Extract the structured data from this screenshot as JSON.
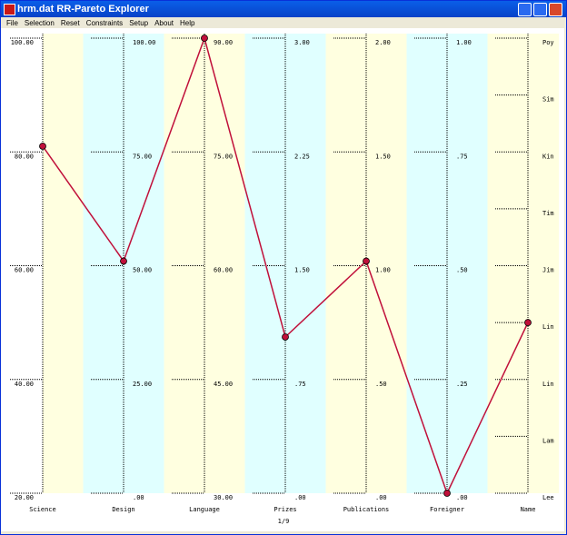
{
  "window": {
    "title": "hrm.dat RR-Pareto Explorer"
  },
  "menu": [
    "File",
    "Selection",
    "Reset",
    "Constraints",
    "Setup",
    "About",
    "Help"
  ],
  "chart_data": {
    "type": "parallel",
    "color": "#c0103a",
    "axes": [
      {
        "name": "Science",
        "ylim": [
          20,
          100
        ],
        "yticks": [
          {
            "value": 20,
            "label": "20.00"
          },
          {
            "value": 40,
            "label": "40.00"
          },
          {
            "value": 60,
            "label": "60.00"
          },
          {
            "value": 80,
            "label": "80.00"
          },
          {
            "value": 100,
            "label": "100.00"
          }
        ]
      },
      {
        "name": "Design",
        "ylim": [
          0,
          100
        ],
        "yticks": [
          {
            "value": 0,
            "label": ".00"
          },
          {
            "value": 25,
            "label": "25.00"
          },
          {
            "value": 50,
            "label": "50.00"
          },
          {
            "value": 75,
            "label": "75.00"
          },
          {
            "value": 100,
            "label": "100.00"
          }
        ]
      },
      {
        "name": "Language",
        "ylim": [
          30,
          90
        ],
        "yticks": [
          {
            "value": 30,
            "label": "30.00"
          },
          {
            "value": 45,
            "label": "45.00"
          },
          {
            "value": 60,
            "label": "60.00"
          },
          {
            "value": 75,
            "label": "75.00"
          },
          {
            "value": 90,
            "label": "90.00"
          }
        ]
      },
      {
        "name": "Prizes",
        "ylim": [
          0,
          3
        ],
        "yticks": [
          {
            "value": 0,
            "label": ".00"
          },
          {
            "value": 0.75,
            "label": ".75"
          },
          {
            "value": 1.5,
            "label": "1.50"
          },
          {
            "value": 2.25,
            "label": "2.25"
          },
          {
            "value": 3,
            "label": "3.00"
          }
        ]
      },
      {
        "name": "Publications",
        "ylim": [
          0,
          2
        ],
        "yticks": [
          {
            "value": 0,
            "label": ".00"
          },
          {
            "value": 0.5,
            "label": ".50"
          },
          {
            "value": 1,
            "label": "1.00"
          },
          {
            "value": 1.5,
            "label": "1.50"
          },
          {
            "value": 2,
            "label": "2.00"
          }
        ]
      },
      {
        "name": "Foreigner",
        "ylim": [
          0,
          1
        ],
        "yticks": [
          {
            "value": 0,
            "label": ".00"
          },
          {
            "value": 0.25,
            "label": ".25"
          },
          {
            "value": 0.5,
            "label": ".50"
          },
          {
            "value": 0.75,
            "label": ".75"
          },
          {
            "value": 1,
            "label": "1.00"
          }
        ]
      },
      {
        "name": "Name",
        "ylim": [
          0,
          8
        ],
        "yticks": [
          {
            "value": 0,
            "label": "Lee"
          },
          {
            "value": 1,
            "label": "Lam"
          },
          {
            "value": 2,
            "label": "Lin"
          },
          {
            "value": 3,
            "label": "Lin"
          },
          {
            "value": 4,
            "label": "Jim"
          },
          {
            "value": 5,
            "label": "Tim"
          },
          {
            "value": 6,
            "label": "Kin"
          },
          {
            "value": 7,
            "label": "Sim"
          },
          {
            "value": 8,
            "label": "Poy"
          }
        ]
      }
    ],
    "values": [
      81,
      51,
      90,
      1.03,
      1.02,
      0,
      3
    ],
    "footer": "1/9"
  }
}
